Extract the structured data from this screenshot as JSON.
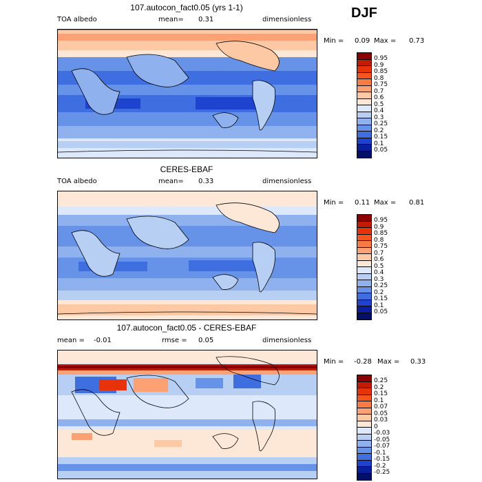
{
  "season": "DJF",
  "panels": [
    {
      "title": "107.autocon_fact0.05 (yrs 1-1)",
      "left_label": "TOA albedo",
      "mean_label": "mean=",
      "mean_value": "0.31",
      "right_label": "dimensionless",
      "min_label": "Min =",
      "min_value": "0.09",
      "max_label": "Max =",
      "max_value": "0.73",
      "levels": [
        "0.95",
        "0.9",
        "0.85",
        "0.8",
        "0.75",
        "0.7",
        "0.6",
        "0.5",
        "0.4",
        "0.3",
        "0.25",
        "0.2",
        "0.15",
        "0.1",
        "0.05"
      ],
      "colors": [
        "#8b0000",
        "#c41a00",
        "#e8320a",
        "#f4561e",
        "#f87a44",
        "#fba173",
        "#fdc9a4",
        "#fde8d8",
        "#dde8fa",
        "#b8cff4",
        "#8fb2ee",
        "#6693e8",
        "#3f6ee0",
        "#1e44cf",
        "#0a1f9e",
        "#03106a"
      ]
    },
    {
      "title": "CERES-EBAF",
      "left_label": "TOA albedo",
      "mean_label": "mean=",
      "mean_value": "0.33",
      "right_label": "dimensionless",
      "min_label": "Min =",
      "min_value": "0.11",
      "max_label": "Max =",
      "max_value": "0.81",
      "levels": [
        "0.95",
        "0.9",
        "0.85",
        "0.8",
        "0.75",
        "0.7",
        "0.6",
        "0.5",
        "0.4",
        "0.3",
        "0.25",
        "0.2",
        "0.15",
        "0.1",
        "0.05"
      ],
      "colors": [
        "#8b0000",
        "#c41a00",
        "#e8320a",
        "#f4561e",
        "#f87a44",
        "#fba173",
        "#fdc9a4",
        "#fde8d8",
        "#dde8fa",
        "#b8cff4",
        "#8fb2ee",
        "#6693e8",
        "#3f6ee0",
        "#1e44cf",
        "#0a1f9e",
        "#03106a"
      ]
    },
    {
      "title": "107.autocon_fact0.05 - CERES-EBAF",
      "left_label": "mean =",
      "left_value": "-0.01",
      "mean_label": "rmse =",
      "mean_value": "0.05",
      "right_label": "dimensionless",
      "min_label": "Min =",
      "min_value": "-0.28",
      "max_label": "Max =",
      "max_value": "0.33",
      "levels": [
        "0.25",
        "0.2",
        "0.15",
        "0.1",
        "0.07",
        "0.05",
        "0.03",
        "0",
        "-0.03",
        "-0.05",
        "-0.07",
        "-0.1",
        "-0.15",
        "-0.2",
        "-0.25"
      ],
      "colors": [
        "#8b0000",
        "#c41a00",
        "#e8320a",
        "#f4561e",
        "#f87a44",
        "#fba173",
        "#fdc9a4",
        "#fde8d8",
        "#dde8fa",
        "#b8cff4",
        "#8fb2ee",
        "#6693e8",
        "#3f6ee0",
        "#1e44cf",
        "#0a1f9e",
        "#03106a"
      ]
    }
  ],
  "chart_data": [
    {
      "type": "heatmap",
      "title": "107.autocon_fact0.05 (yrs 1-1)",
      "variable": "TOA albedo",
      "units": "dimensionless",
      "mean": 0.31,
      "min": 0.09,
      "max": 0.73,
      "season": "DJF",
      "colorbar_levels": [
        0.05,
        0.1,
        0.15,
        0.2,
        0.25,
        0.3,
        0.4,
        0.5,
        0.6,
        0.7,
        0.75,
        0.8,
        0.85,
        0.9,
        0.95
      ]
    },
    {
      "type": "heatmap",
      "title": "CERES-EBAF",
      "variable": "TOA albedo",
      "units": "dimensionless",
      "mean": 0.33,
      "min": 0.11,
      "max": 0.81,
      "season": "DJF",
      "colorbar_levels": [
        0.05,
        0.1,
        0.15,
        0.2,
        0.25,
        0.3,
        0.4,
        0.5,
        0.6,
        0.7,
        0.75,
        0.8,
        0.85,
        0.9,
        0.95
      ]
    },
    {
      "type": "heatmap",
      "title": "107.autocon_fact0.05 - CERES-EBAF",
      "units": "dimensionless",
      "mean": -0.01,
      "rmse": 0.05,
      "min": -0.28,
      "max": 0.33,
      "season": "DJF",
      "colorbar_levels": [
        -0.25,
        -0.2,
        -0.15,
        -0.1,
        -0.07,
        -0.05,
        -0.03,
        0,
        0.03,
        0.05,
        0.07,
        0.1,
        0.15,
        0.2,
        0.25
      ]
    }
  ]
}
